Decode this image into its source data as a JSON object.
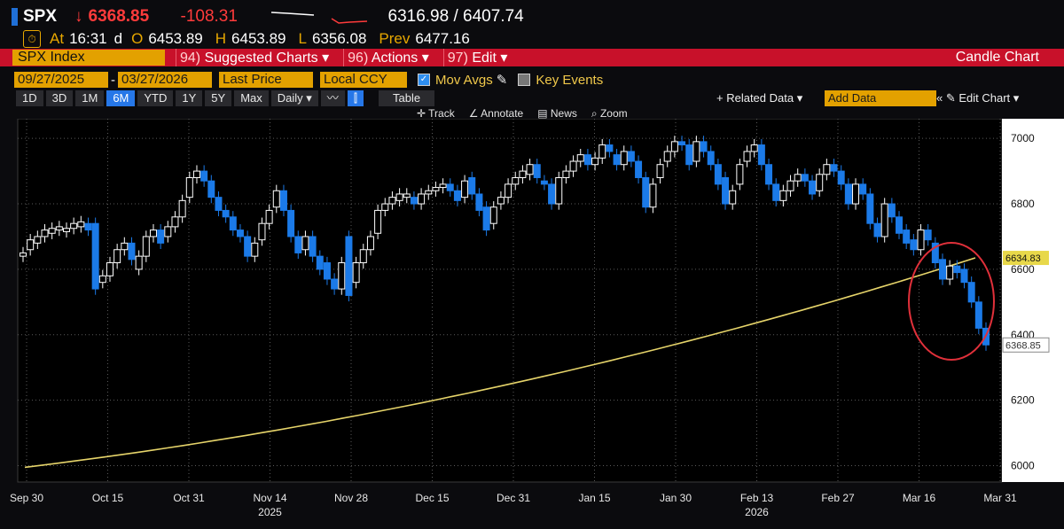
{
  "quote": {
    "ticker": "SPX",
    "arrow": "↓",
    "last": "6368.85",
    "change": "-108.31",
    "bid_ask": "6316.98 / 6407.74"
  },
  "ohlc": {
    "at_label": "At",
    "time": "16:31",
    "d_label": "d",
    "open_label": "O",
    "open": "6453.89",
    "high_label": "H",
    "high": "6453.89",
    "low_label": "L",
    "low": "6356.08",
    "prev_label": "Prev",
    "prev": "6477.16"
  },
  "command_bar": {
    "security": "SPX Index",
    "menus": [
      {
        "num": "94)",
        "label": "Suggested Charts ▾"
      },
      {
        "num": "96)",
        "label": "Actions ▾"
      },
      {
        "num": "97)",
        "label": "Edit ▾"
      }
    ],
    "chart_type": "Candle Chart"
  },
  "settings": {
    "start_date": "09/27/2025",
    "end_date": "03/27/2026",
    "price_type": "Last Price",
    "currency": "Local CCY",
    "mov_avgs": "Mov Avgs",
    "key_events": "Key Events"
  },
  "periods": [
    "1D",
    "3D",
    "1M",
    "6M",
    "YTD",
    "1Y",
    "5Y",
    "Max"
  ],
  "active_period": "6M",
  "frequency": "Daily ▾",
  "table_label": "Table",
  "related_data": "+ Related Data ▾",
  "add_data_placeholder": "Add Data",
  "edit_chart": "✎ Edit Chart ▾",
  "tools": [
    "Track",
    "Annotate",
    "News",
    "Zoom"
  ],
  "icons": [
    "clock-icon",
    "checkbox-icon",
    "pencil-icon",
    "line-chart-icon",
    "candle-icon",
    "collapse-icon"
  ],
  "colors": {
    "up": "#ffffff",
    "down": "#1b7ae8",
    "ma": "#e6d46a",
    "highlight": "#e0303a",
    "accent": "#e3a100",
    "bar": "#c8112a"
  },
  "chart_data": {
    "type": "candlestick",
    "ylim": [
      5950,
      7060
    ],
    "yticks": [
      6000,
      6200,
      6400,
      6600,
      6800,
      7000
    ],
    "xtick_labels": [
      "Sep 30",
      "Oct 15",
      "Oct 31",
      "Nov 14",
      "Nov 28",
      "Dec 15",
      "Dec 31",
      "Jan 15",
      "Jan 30",
      "Feb 13",
      "Feb 27",
      "Mar 16",
      "Mar 31"
    ],
    "year_labels": [
      {
        "after": "Nov 14",
        "label": "2025"
      },
      {
        "after": "Feb 13",
        "label": "2026"
      }
    ],
    "price_tags": {
      "ma": "6634.83",
      "last": "6368.85"
    },
    "moving_average": {
      "start": 5995,
      "end": 6634.83
    },
    "candles": [
      [
        6640,
        6650
      ],
      [
        6660,
        6690
      ],
      [
        6680,
        6700
      ],
      [
        6700,
        6720
      ],
      [
        6710,
        6725
      ],
      [
        6720,
        6730
      ],
      [
        6715,
        6725
      ],
      [
        6725,
        6740
      ],
      [
        6730,
        6745
      ],
      [
        6740,
        6720
      ],
      [
        6740,
        6540
      ],
      [
        6560,
        6580
      ],
      [
        6580,
        6620
      ],
      [
        6620,
        6660
      ],
      [
        6660,
        6680
      ],
      [
        6680,
        6630
      ],
      [
        6600,
        6640
      ],
      [
        6640,
        6700
      ],
      [
        6700,
        6720
      ],
      [
        6720,
        6680
      ],
      [
        6700,
        6730
      ],
      [
        6730,
        6760
      ],
      [
        6760,
        6810
      ],
      [
        6820,
        6880
      ],
      [
        6880,
        6900
      ],
      [
        6900,
        6870
      ],
      [
        6870,
        6820
      ],
      [
        6820,
        6780
      ],
      [
        6780,
        6760
      ],
      [
        6760,
        6720
      ],
      [
        6720,
        6700
      ],
      [
        6700,
        6640
      ],
      [
        6640,
        6680
      ],
      [
        6690,
        6740
      ],
      [
        6740,
        6780
      ],
      [
        6790,
        6840
      ],
      [
        6840,
        6780
      ],
      [
        6780,
        6700
      ],
      [
        6700,
        6650
      ],
      [
        6660,
        6700
      ],
      [
        6700,
        6640
      ],
      [
        6640,
        6600
      ],
      [
        6620,
        6570
      ],
      [
        6570,
        6540
      ],
      [
        6540,
        6620
      ],
      [
        6700,
        6520
      ],
      [
        6560,
        6620
      ],
      [
        6620,
        6660
      ],
      [
        6660,
        6700
      ],
      [
        6710,
        6780
      ],
      [
        6780,
        6800
      ],
      [
        6800,
        6820
      ],
      [
        6810,
        6830
      ],
      [
        6820,
        6830
      ],
      [
        6820,
        6800
      ],
      [
        6800,
        6830
      ],
      [
        6830,
        6840
      ],
      [
        6840,
        6850
      ],
      [
        6850,
        6860
      ],
      [
        6860,
        6840
      ],
      [
        6840,
        6810
      ],
      [
        6820,
        6870
      ],
      [
        6880,
        6830
      ],
      [
        6830,
        6780
      ],
      [
        6790,
        6720
      ],
      [
        6740,
        6790
      ],
      [
        6800,
        6820
      ],
      [
        6820,
        6860
      ],
      [
        6860,
        6880
      ],
      [
        6880,
        6900
      ],
      [
        6890,
        6920
      ],
      [
        6920,
        6880
      ],
      [
        6870,
        6860
      ],
      [
        6860,
        6800
      ],
      [
        6800,
        6880
      ],
      [
        6880,
        6900
      ],
      [
        6900,
        6930
      ],
      [
        6930,
        6950
      ],
      [
        6950,
        6920
      ],
      [
        6920,
        6940
      ],
      [
        6940,
        6980
      ],
      [
        6980,
        6960
      ],
      [
        6950,
        6920
      ],
      [
        6920,
        6960
      ],
      [
        6960,
        6930
      ],
      [
        6930,
        6880
      ],
      [
        6880,
        6790
      ],
      [
        6790,
        6860
      ],
      [
        6880,
        6920
      ],
      [
        6930,
        6960
      ],
      [
        6960,
        6990
      ],
      [
        6990,
        6980
      ],
      [
        6980,
        6920
      ],
      [
        6930,
        6990
      ],
      [
        6990,
        6960
      ],
      [
        6960,
        6920
      ],
      [
        6920,
        6860
      ],
      [
        6880,
        6800
      ],
      [
        6800,
        6840
      ],
      [
        6860,
        6920
      ],
      [
        6930,
        6960
      ],
      [
        6960,
        6980
      ],
      [
        6980,
        6920
      ],
      [
        6920,
        6860
      ],
      [
        6860,
        6810
      ],
      [
        6810,
        6840
      ],
      [
        6840,
        6870
      ],
      [
        6870,
        6890
      ],
      [
        6890,
        6870
      ],
      [
        6870,
        6830
      ],
      [
        6840,
        6890
      ],
      [
        6890,
        6920
      ],
      [
        6920,
        6900
      ],
      [
        6900,
        6860
      ],
      [
        6860,
        6800
      ],
      [
        6800,
        6860
      ],
      [
        6860,
        6830
      ],
      [
        6830,
        6740
      ],
      [
        6740,
        6700
      ],
      [
        6700,
        6800
      ],
      [
        6800,
        6760
      ],
      [
        6760,
        6710
      ],
      [
        6720,
        6680
      ],
      [
        6690,
        6660
      ],
      [
        6660,
        6720
      ],
      [
        6720,
        6690
      ],
      [
        6680,
        6620
      ],
      [
        6630,
        6570
      ],
      [
        6570,
        6610
      ],
      [
        6610,
        6590
      ],
      [
        6600,
        6560
      ],
      [
        6560,
        6500
      ],
      [
        6500,
        6420
      ],
      [
        6420,
        6369
      ]
    ]
  }
}
